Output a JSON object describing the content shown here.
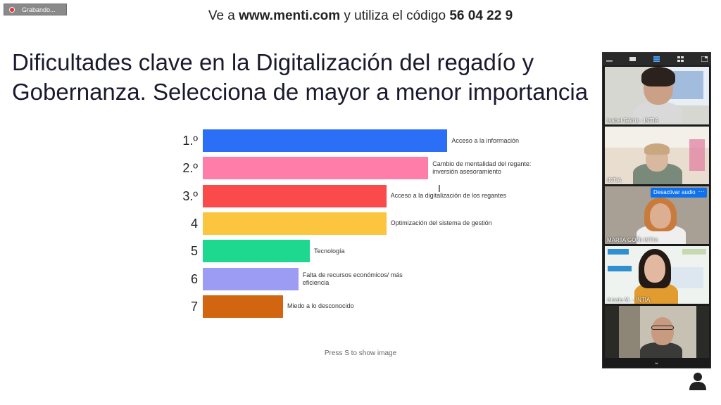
{
  "recording": {
    "label": "Grabando..."
  },
  "join": {
    "prefix": "Ve a ",
    "url": "www.menti.com",
    "middle": " y utiliza el código ",
    "code": "56 04 22 9"
  },
  "slide": {
    "title": "Dificultades clave en la Digitalización del regadío y\nGobernanza. Selecciona de mayor a menor importancia",
    "hint": "Press S to show image"
  },
  "colors": {
    "bar1": "#2a6ff5",
    "bar2": "#ff7ea9",
    "bar3": "#fa4a4a",
    "bar4": "#fbc53f",
    "bar5": "#1fd890",
    "bar6": "#9c9cf5",
    "bar7": "#d2650f",
    "zoom_blue": "#0e72ed"
  },
  "chart_data": {
    "type": "bar",
    "orientation": "horizontal",
    "categories": [
      "1.º",
      "2.º",
      "3.º",
      "4",
      "5",
      "6",
      "7"
    ],
    "labels": [
      "Acceso a la información",
      "Cambio de mentalidad del regante: inversión asesoramiento",
      "Acceso a la digitalización de los regantes",
      "Optimización del sistema de gestión",
      "Tecnología",
      "Falta de recursos económicos/ más eficiencia",
      "Miedo a lo desconocido"
    ],
    "values": [
      6.4,
      5.9,
      4.8,
      4.8,
      2.8,
      2.5,
      2.1
    ],
    "xlim": [
      0,
      7
    ]
  },
  "gallery": {
    "participants": [
      {
        "name": "Isabel Gárriz - INTIA"
      },
      {
        "name": "INTIA"
      },
      {
        "name": "MARTA GOÑI-INTIA"
      },
      {
        "name": "Amaia M. - INTIA"
      },
      {
        "name": ""
      }
    ],
    "unmute_label": "Desactivar audio",
    "more_label": "···",
    "chevron_icon": "chevron-down-icon",
    "chevron_glyph": "⌄"
  }
}
